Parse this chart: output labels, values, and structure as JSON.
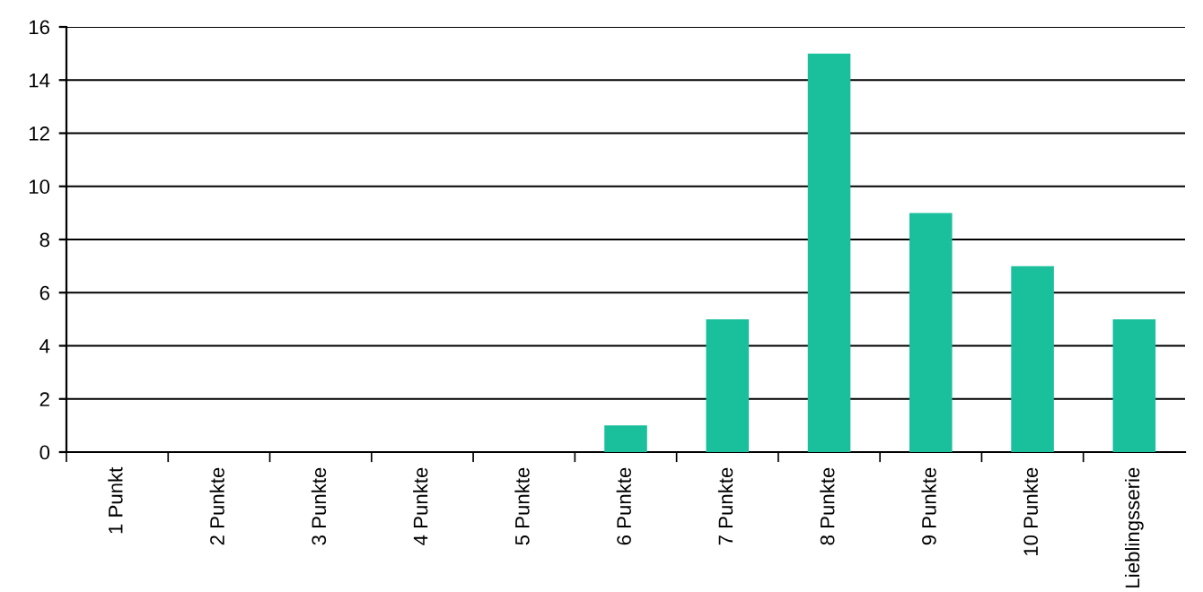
{
  "chart_data": {
    "type": "bar",
    "categories": [
      "1 Punkt",
      "2 Punkte",
      "3 Punkte",
      "4 Punkte",
      "5 Punkte",
      "6 Punkte",
      "7 Punkte",
      "8 Punkte",
      "9 Punkte",
      "10 Punkte",
      "Lieblingsserie"
    ],
    "values": [
      0,
      0,
      0,
      0,
      0,
      1,
      5,
      15,
      9,
      7,
      5
    ],
    "color": "#1abf9c",
    "ylim": [
      0,
      16
    ],
    "yticks": [
      0,
      2,
      4,
      6,
      8,
      10,
      12,
      14,
      16
    ],
    "grid": "y",
    "legend": false
  }
}
